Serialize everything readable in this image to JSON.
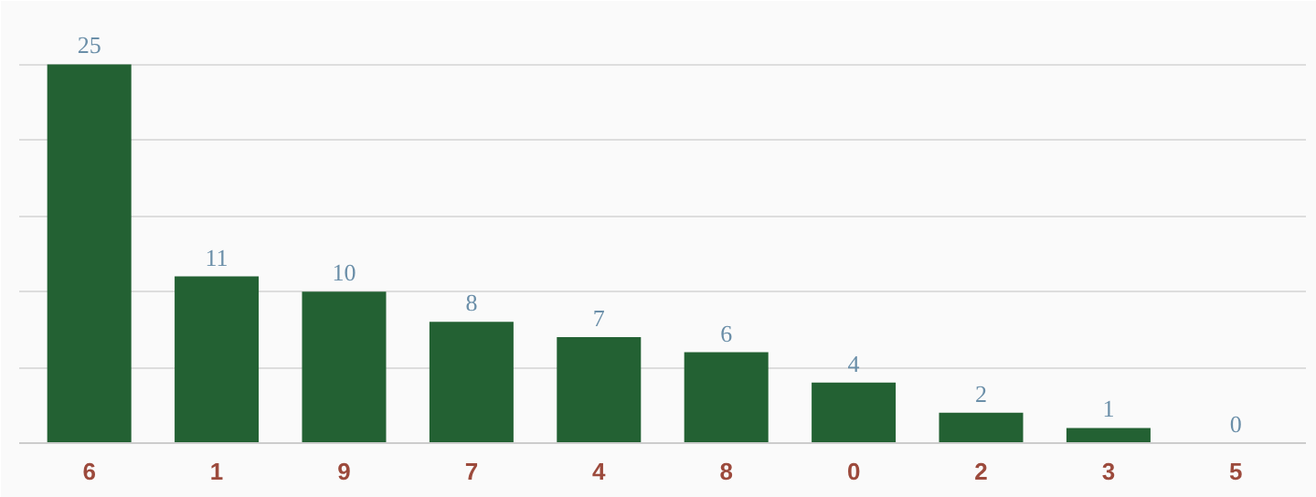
{
  "chart_data": {
    "type": "bar",
    "categories": [
      "6",
      "1",
      "9",
      "7",
      "4",
      "8",
      "0",
      "2",
      "3",
      "5"
    ],
    "values": [
      25,
      11,
      10,
      8,
      7,
      6,
      4,
      2,
      1,
      0
    ],
    "color": "#236133",
    "grid": "y",
    "data_labels": true,
    "tick_labels": "x"
  }
}
